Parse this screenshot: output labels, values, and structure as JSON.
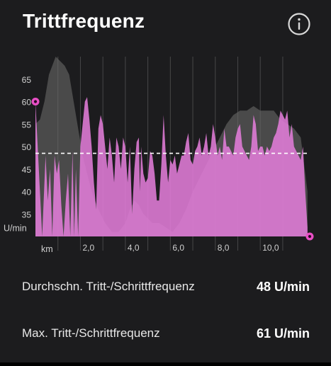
{
  "header": {
    "title": "Trittfrequenz",
    "info_icon": "info-circle-icon"
  },
  "colors": {
    "background": "#1c1c1e",
    "cadence": "#e17cd8",
    "elevation": "#4a4a4a",
    "marker": "#e84fc5",
    "average_line": "#ffffff"
  },
  "chart_data": {
    "type": "area",
    "ylabel": "U/min",
    "xlabel": "km",
    "y_ticks": [
      "35",
      "40",
      "45",
      "50",
      "55",
      "60",
      "65"
    ],
    "x_ticks": [
      "2,0",
      "4,0",
      "6,0",
      "8,0",
      "10,0"
    ],
    "ylim": [
      30,
      70
    ],
    "xlim": [
      0,
      12.2
    ],
    "average": 48.5,
    "grid": "vertical",
    "series": [
      {
        "name": "",
        "kind": "elevation-background",
        "x": [
          0,
          0.2,
          0.4,
          0.6,
          0.9,
          1.1,
          1.3,
          1.5,
          1.7,
          1.9,
          2.1,
          2.3,
          2.5,
          2.8,
          3.1,
          3.4,
          3.7,
          4.0,
          4.2,
          4.4,
          4.6,
          4.8,
          5.0,
          5.2,
          5.5,
          5.8,
          6.1,
          6.4,
          6.7,
          7.0,
          7.3,
          7.6,
          7.9,
          8.2,
          8.5,
          8.8,
          9.1,
          9.4,
          9.7,
          10.0,
          10.3,
          10.6,
          10.9,
          11.2,
          11.5,
          11.8,
          12.1
        ],
        "values": [
          55,
          56,
          60,
          66,
          70,
          69,
          68,
          66,
          60,
          54,
          48,
          44,
          40,
          36,
          33,
          31,
          31,
          33,
          36,
          38,
          37,
          35,
          34,
          33,
          33,
          32,
          31,
          33,
          36,
          40,
          43,
          46,
          49,
          52,
          55,
          57,
          58,
          58,
          59,
          58,
          58,
          58,
          56,
          55,
          54,
          52,
          40
        ]
      },
      {
        "name": "",
        "kind": "cadence",
        "x": [
          0,
          0.05,
          0.15,
          0.3,
          0.45,
          0.55,
          0.65,
          0.75,
          0.85,
          0.95,
          1.05,
          1.15,
          1.25,
          1.35,
          1.45,
          1.55,
          1.65,
          1.72,
          1.8,
          1.9,
          2.0,
          2.1,
          2.2,
          2.3,
          2.4,
          2.5,
          2.6,
          2.7,
          2.8,
          2.9,
          3.0,
          3.1,
          3.2,
          3.3,
          3.4,
          3.5,
          3.6,
          3.7,
          3.8,
          3.9,
          4.0,
          4.1,
          4.2,
          4.3,
          4.4,
          4.5,
          4.6,
          4.65,
          4.7,
          4.8,
          4.9,
          5.0,
          5.1,
          5.2,
          5.3,
          5.4,
          5.5,
          5.6,
          5.7,
          5.8,
          5.9,
          6.0,
          6.1,
          6.2,
          6.3,
          6.4,
          6.5,
          6.6,
          6.7,
          6.8,
          6.9,
          7.0,
          7.1,
          7.2,
          7.3,
          7.4,
          7.5,
          7.6,
          7.7,
          7.8,
          7.9,
          8.0,
          8.1,
          8.2,
          8.3,
          8.4,
          8.5,
          8.6,
          8.7,
          8.8,
          8.9,
          9.0,
          9.1,
          9.2,
          9.3,
          9.4,
          9.5,
          9.6,
          9.7,
          9.8,
          9.9,
          10.0,
          10.1,
          10.2,
          10.3,
          10.4,
          10.5,
          10.6,
          10.7,
          10.8,
          10.9,
          11.0,
          11.1,
          11.2,
          11.3,
          11.4,
          11.5,
          11.6,
          11.7,
          11.8,
          11.9,
          12.0,
          12.1
        ],
        "values": [
          60,
          55,
          45,
          30,
          48,
          38,
          45,
          30,
          48,
          44,
          47,
          37,
          30,
          38,
          44,
          30,
          49,
          30,
          45,
          30,
          50,
          55,
          60,
          61,
          56,
          50,
          42,
          36,
          54,
          57,
          55,
          50,
          45,
          52,
          48,
          42,
          52,
          50,
          45,
          52,
          50,
          42,
          50,
          35,
          45,
          51,
          52,
          40,
          50,
          44,
          42,
          43,
          49,
          48,
          44,
          38,
          38,
          46,
          57,
          48,
          42,
          47,
          46,
          48,
          44,
          46,
          48,
          48,
          51,
          53,
          47,
          46,
          49,
          50,
          52,
          48,
          50,
          53,
          48,
          50,
          55,
          52,
          48,
          50,
          47,
          54,
          50,
          50,
          49,
          48,
          52,
          54,
          55,
          50,
          49,
          48,
          47,
          50,
          57,
          55,
          49,
          50,
          50,
          48,
          50,
          49,
          50,
          52,
          53,
          55,
          58,
          57,
          56,
          58,
          52,
          55,
          50,
          49,
          48,
          47,
          50,
          40,
          32
        ]
      }
    ]
  },
  "stats": [
    {
      "label": "Durchschn. Tritt-/Schrittfrequenz",
      "value": "48 U/min"
    },
    {
      "label": "Max. Tritt-/Schrittfrequenz",
      "value": "61 U/min"
    }
  ]
}
